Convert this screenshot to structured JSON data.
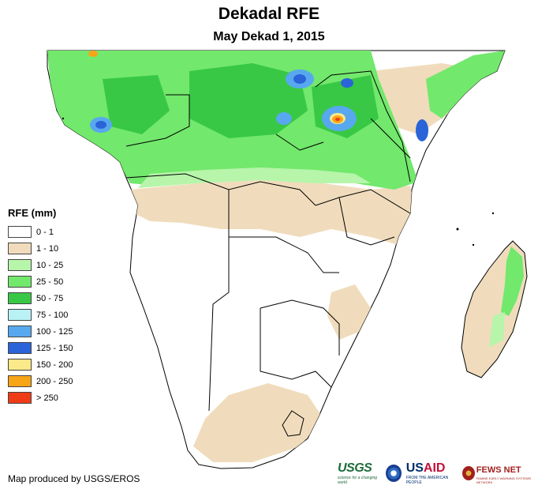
{
  "title": "Dekadal RFE",
  "subtitle": "May Dekad 1, 2015",
  "legend": {
    "title": "RFE (mm)",
    "items": [
      {
        "label": "0 - 1",
        "color": "#ffffff"
      },
      {
        "label": "1 - 10",
        "color": "#f0dcbc"
      },
      {
        "label": "10 - 25",
        "color": "#b6f5aa"
      },
      {
        "label": "25 - 50",
        "color": "#72e86c"
      },
      {
        "label": "50 - 75",
        "color": "#38c846"
      },
      {
        "label": "75 - 100",
        "color": "#b9f2f5"
      },
      {
        "label": "100 - 125",
        "color": "#58a8ef"
      },
      {
        "label": "125 - 150",
        "color": "#2a64d8"
      },
      {
        "label": "150 - 200",
        "color": "#fbe98a"
      },
      {
        "label": "200 - 250",
        "color": "#f7a417"
      },
      {
        "label": "> 250",
        "color": "#f03b17"
      }
    ]
  },
  "credit": "Map produced by USGS/EROS",
  "logos": {
    "usgs": {
      "word": "USGS",
      "tagline": "science for a changing world"
    },
    "usaid": {
      "word_a": "US",
      "word_b": "AID",
      "tagline": "FROM THE AMERICAN PEOPLE"
    },
    "fews": {
      "word": "FEWS NET",
      "tagline": "FAMINE EARLY WARNING SYSTEMS NETWORK"
    }
  }
}
